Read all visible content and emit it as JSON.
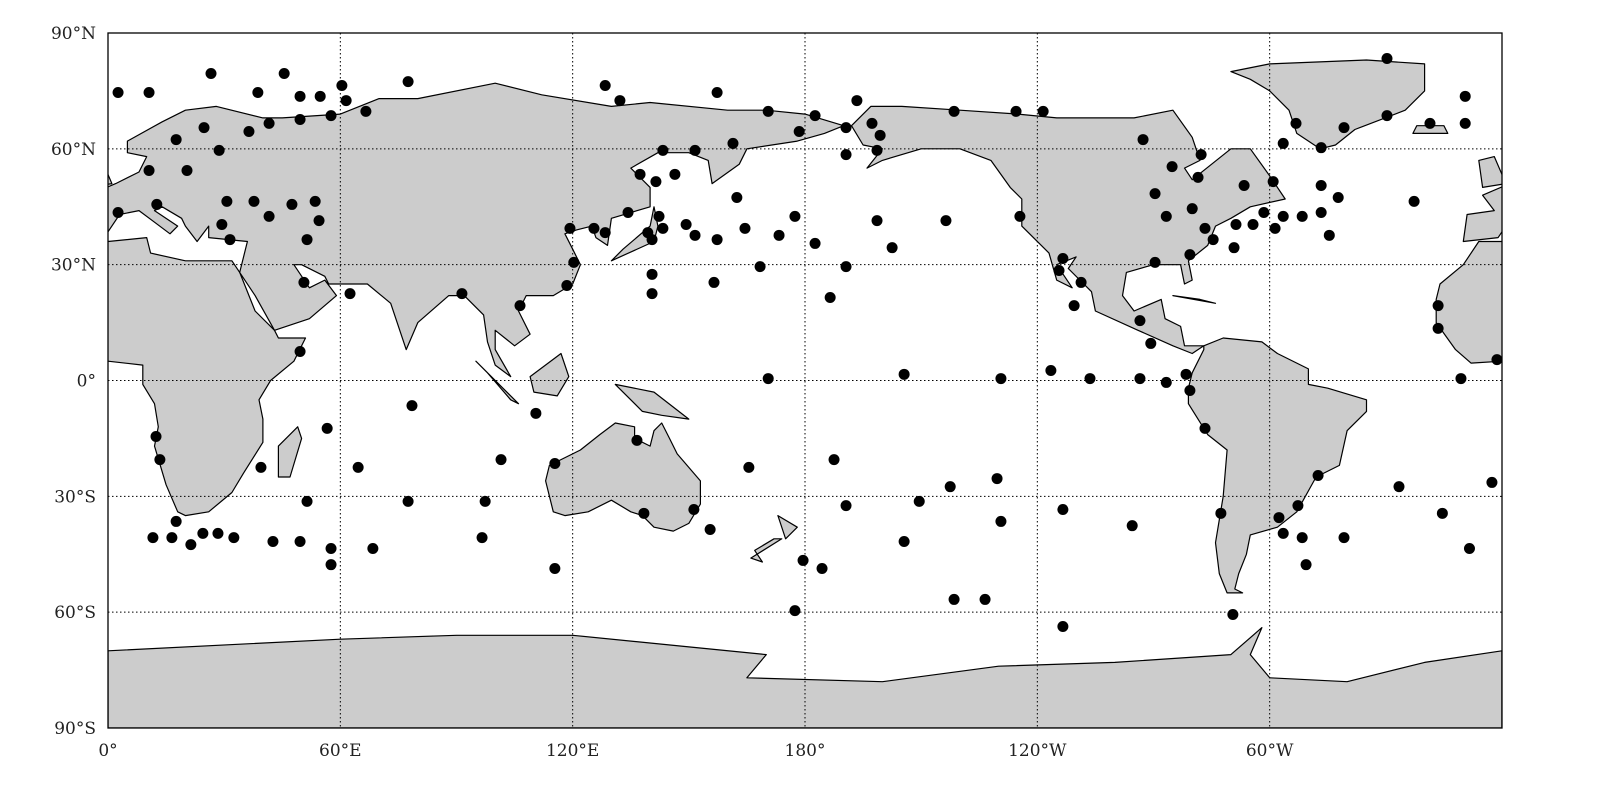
{
  "map": {
    "projection": "equirectangular",
    "lon_range": [
      0,
      360
    ],
    "lat_range": [
      -90,
      90
    ],
    "grid": true,
    "land_color": "#cccccc",
    "ocean_color": "#ffffff",
    "point_color": "#000000",
    "x_ticks": [
      {
        "lon": 0,
        "label": "0°"
      },
      {
        "lon": 60,
        "label": "60°E"
      },
      {
        "lon": 120,
        "label": "120°E"
      },
      {
        "lon": 180,
        "label": "180°"
      },
      {
        "lon": 240,
        "label": "120°W"
      },
      {
        "lon": 300,
        "label": "60°W"
      }
    ],
    "y_ticks": [
      {
        "lat": 90,
        "label": "90°N"
      },
      {
        "lat": 60,
        "label": "60°N"
      },
      {
        "lat": 30,
        "label": "30°N"
      },
      {
        "lat": 0,
        "label": "0°"
      },
      {
        "lat": -30,
        "label": "30°S"
      },
      {
        "lat": -60,
        "label": "60°S"
      },
      {
        "lat": -90,
        "label": "90°S"
      }
    ],
    "points": [
      [
        2.6,
        74.6
      ],
      [
        10.6,
        74.6
      ],
      [
        26.6,
        79.5
      ],
      [
        45.5,
        79.5
      ],
      [
        60.4,
        76.4
      ],
      [
        77.5,
        77.4
      ],
      [
        128.4,
        76.4
      ],
      [
        38.7,
        74.6
      ],
      [
        49.6,
        73.6
      ],
      [
        54.8,
        73.6
      ],
      [
        61.5,
        72.5
      ],
      [
        132.2,
        72.5
      ],
      [
        157.3,
        74.6
      ],
      [
        193.4,
        72.5
      ],
      [
        17.6,
        62.4
      ],
      [
        24.8,
        65.5
      ],
      [
        28.7,
        59.6
      ],
      [
        36.4,
        64.5
      ],
      [
        41.6,
        66.6
      ],
      [
        49.6,
        67.6
      ],
      [
        57.6,
        68.6
      ],
      [
        66.6,
        69.7
      ],
      [
        170.5,
        69.7
      ],
      [
        182.6,
        68.6
      ],
      [
        178.5,
        64.5
      ],
      [
        190.6,
        65.5
      ],
      [
        197.3,
        66.6
      ],
      [
        199.4,
        63.5
      ],
      [
        190.6,
        58.5
      ],
      [
        198.6,
        59.6
      ],
      [
        218.5,
        69.7
      ],
      [
        234.5,
        69.7
      ],
      [
        241.5,
        69.7
      ],
      [
        267.3,
        62.4
      ],
      [
        274.8,
        55.4
      ],
      [
        282.3,
        58.5
      ],
      [
        281.5,
        52.6
      ],
      [
        270.4,
        48.4
      ],
      [
        273.3,
        42.5
      ],
      [
        280.0,
        44.5
      ],
      [
        283.3,
        39.4
      ],
      [
        285.4,
        36.5
      ],
      [
        279.4,
        32.6
      ],
      [
        270.4,
        30.6
      ],
      [
        293.4,
        50.5
      ],
      [
        291.3,
        40.4
      ],
      [
        290.8,
        34.4
      ],
      [
        295.7,
        40.4
      ],
      [
        298.5,
        43.5
      ],
      [
        300.9,
        51.5
      ],
      [
        303.5,
        61.4
      ],
      [
        306.8,
        66.6
      ],
      [
        313.3,
        60.3
      ],
      [
        319.2,
        65.5
      ],
      [
        330.3,
        83.4
      ],
      [
        330.3,
        68.6
      ],
      [
        341.4,
        66.6
      ],
      [
        350.5,
        73.6
      ],
      [
        350.5,
        66.6
      ],
      [
        301.4,
        39.4
      ],
      [
        303.5,
        42.5
      ],
      [
        308.4,
        42.5
      ],
      [
        313.3,
        43.5
      ],
      [
        313.3,
        50.5
      ],
      [
        317.7,
        47.4
      ],
      [
        315.4,
        37.6
      ],
      [
        337.3,
        46.4
      ],
      [
        2.6,
        43.5
      ],
      [
        10.6,
        54.4
      ],
      [
        20.4,
        54.4
      ],
      [
        12.6,
        45.6
      ],
      [
        30.7,
        46.4
      ],
      [
        37.7,
        46.4
      ],
      [
        29.4,
        40.4
      ],
      [
        31.5,
        36.5
      ],
      [
        41.6,
        42.5
      ],
      [
        47.5,
        45.6
      ],
      [
        53.5,
        46.4
      ],
      [
        54.5,
        41.4
      ],
      [
        51.4,
        36.5
      ],
      [
        50.6,
        25.4
      ],
      [
        62.5,
        22.5
      ],
      [
        91.4,
        22.5
      ],
      [
        106.4,
        19.4
      ],
      [
        118.5,
        24.6
      ],
      [
        120.3,
        30.6
      ],
      [
        119.3,
        39.4
      ],
      [
        125.5,
        39.4
      ],
      [
        128.4,
        38.3
      ],
      [
        134.3,
        43.5
      ],
      [
        137.4,
        53.4
      ],
      [
        141.5,
        51.5
      ],
      [
        143.3,
        59.6
      ],
      [
        146.4,
        53.4
      ],
      [
        151.6,
        59.6
      ],
      [
        161.4,
        61.4
      ],
      [
        162.4,
        47.4
      ],
      [
        142.3,
        42.5
      ],
      [
        143.3,
        39.4
      ],
      [
        139.4,
        38.3
      ],
      [
        140.5,
        36.5
      ],
      [
        140.5,
        27.5
      ],
      [
        140.5,
        22.5
      ],
      [
        149.3,
        40.4
      ],
      [
        151.6,
        37.6
      ],
      [
        157.3,
        36.5
      ],
      [
        156.5,
        25.4
      ],
      [
        164.5,
        39.4
      ],
      [
        168.4,
        29.5
      ],
      [
        173.3,
        37.6
      ],
      [
        177.4,
        42.5
      ],
      [
        182.6,
        35.5
      ],
      [
        190.6,
        29.5
      ],
      [
        186.5,
        21.5
      ],
      [
        198.6,
        41.4
      ],
      [
        202.5,
        34.4
      ],
      [
        216.4,
        41.4
      ],
      [
        235.5,
        42.5
      ],
      [
        245.6,
        28.5
      ],
      [
        246.6,
        31.6
      ],
      [
        251.3,
        25.4
      ],
      [
        249.5,
        19.4
      ],
      [
        49.6,
        7.5
      ],
      [
        205.6,
        1.6
      ],
      [
        170.5,
        0.5
      ],
      [
        230.6,
        0.5
      ],
      [
        243.5,
        2.6
      ],
      [
        253.6,
        0.5
      ],
      [
        266.5,
        15.5
      ],
      [
        269.3,
        9.6
      ],
      [
        266.5,
        0.5
      ],
      [
        273.3,
        -0.5
      ],
      [
        278.4,
        1.6
      ],
      [
        279.4,
        -2.6
      ],
      [
        283.3,
        -12.4
      ],
      [
        349.4,
        0.5
      ],
      [
        343.5,
        19.4
      ],
      [
        343.5,
        13.5
      ],
      [
        358.7,
        5.4
      ],
      [
        78.5,
        -6.5
      ],
      [
        110.5,
        -8.5
      ],
      [
        136.6,
        -15.5
      ],
      [
        12.4,
        -14.5
      ],
      [
        13.4,
        -20.5
      ],
      [
        56.6,
        -12.4
      ],
      [
        39.5,
        -22.5
      ],
      [
        64.6,
        -22.5
      ],
      [
        101.5,
        -20.5
      ],
      [
        115.4,
        -21.5
      ],
      [
        165.5,
        -22.5
      ],
      [
        187.5,
        -20.5
      ],
      [
        51.4,
        -31.3
      ],
      [
        77.5,
        -31.3
      ],
      [
        97.4,
        -31.3
      ],
      [
        138.4,
        -34.4
      ],
      [
        151.3,
        -33.4
      ],
      [
        155.5,
        -38.6
      ],
      [
        190.6,
        -32.4
      ],
      [
        209.5,
        -31.3
      ],
      [
        217.5,
        -27.5
      ],
      [
        229.6,
        -25.4
      ],
      [
        230.6,
        -36.5
      ],
      [
        246.6,
        -33.4
      ],
      [
        264.5,
        -37.6
      ],
      [
        287.4,
        -34.4
      ],
      [
        302.4,
        -35.5
      ],
      [
        303.5,
        -39.6
      ],
      [
        307.3,
        -32.4
      ],
      [
        308.4,
        -40.7
      ],
      [
        309.4,
        -47.7
      ],
      [
        312.5,
        -24.6
      ],
      [
        319.2,
        -40.7
      ],
      [
        333.4,
        -27.5
      ],
      [
        344.6,
        -34.4
      ],
      [
        351.6,
        -43.5
      ],
      [
        357.4,
        -26.4
      ],
      [
        11.6,
        -40.7
      ],
      [
        16.5,
        -40.7
      ],
      [
        17.6,
        -36.5
      ],
      [
        21.4,
        -42.5
      ],
      [
        24.5,
        -39.6
      ],
      [
        28.4,
        -39.6
      ],
      [
        32.5,
        -40.7
      ],
      [
        42.6,
        -41.7
      ],
      [
        49.6,
        -41.7
      ],
      [
        57.6,
        -43.5
      ],
      [
        57.6,
        -47.7
      ],
      [
        68.4,
        -43.5
      ],
      [
        96.6,
        -40.7
      ],
      [
        115.4,
        -48.7
      ],
      [
        179.5,
        -46.6
      ],
      [
        184.4,
        -48.7
      ],
      [
        177.4,
        -59.6
      ],
      [
        205.6,
        -41.7
      ],
      [
        218.5,
        -56.7
      ],
      [
        226.5,
        -56.7
      ],
      [
        246.6,
        -63.7
      ],
      [
        290.5,
        -60.6
      ]
    ]
  }
}
